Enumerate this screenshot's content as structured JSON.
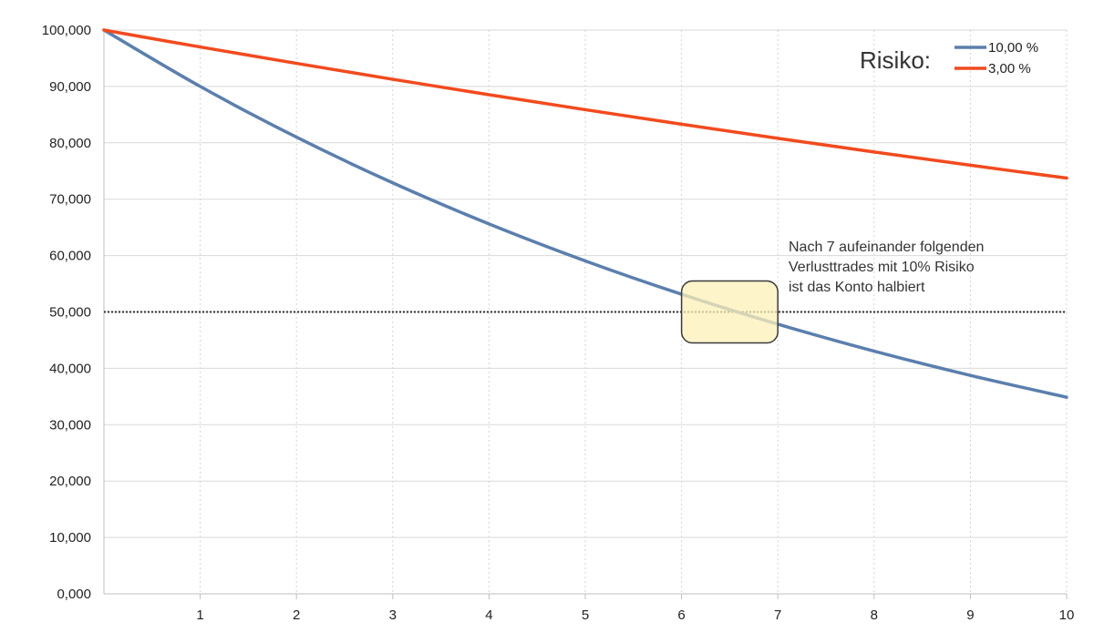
{
  "chart_data": {
    "type": "line",
    "x": [
      0,
      1,
      2,
      3,
      4,
      5,
      6,
      7,
      8,
      9,
      10
    ],
    "xlim": [
      0,
      10
    ],
    "ylim": [
      0,
      100000
    ],
    "x_ticks": [
      "1",
      "2",
      "3",
      "4",
      "5",
      "6",
      "7",
      "8",
      "9",
      "10"
    ],
    "y_ticks": [
      "0,000",
      "10,000",
      "20,000",
      "30,000",
      "40,000",
      "50,000",
      "60,000",
      "70,000",
      "80,000",
      "90,000",
      "100,000"
    ],
    "y_tick_values": [
      0,
      10000,
      20000,
      30000,
      40000,
      50000,
      60000,
      70000,
      80000,
      90000,
      100000
    ],
    "grid": true,
    "legend_position": "top-right",
    "legend_title": "Risiko:",
    "series": [
      {
        "name": "10,00 %",
        "color": "#5b7fad",
        "values": [
          100000,
          90000,
          81000,
          72900,
          65610,
          59049,
          53144,
          47830,
          43047,
          38742,
          34868
        ]
      },
      {
        "name": "3,00 %",
        "color": "#f24a1e",
        "values": [
          100000,
          97000,
          94090,
          91267,
          88529,
          85873,
          83297,
          80798,
          78374,
          76023,
          73742
        ]
      }
    ],
    "reference_line": {
      "y": 50000,
      "color": "#333333",
      "style": "dotted"
    },
    "annotation": {
      "lines": [
        "Nach 7 aufeinander folgenden",
        "Verlusttrades mit 10% Risiko",
        "ist das Konto halbiert"
      ]
    },
    "highlight_box": {
      "x_from": 6.0,
      "x_to": 7.0,
      "y_from": 44500,
      "y_to": 55500,
      "color": "#fdf0b8"
    }
  }
}
